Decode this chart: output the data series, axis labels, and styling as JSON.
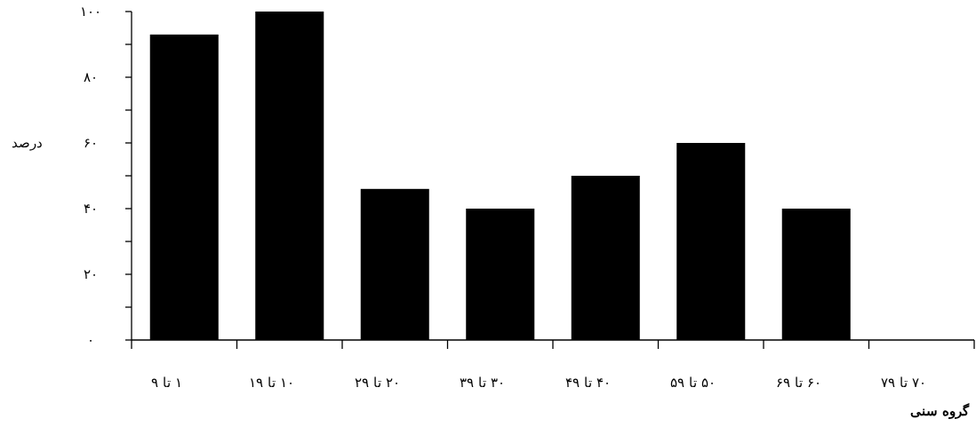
{
  "chart_data": {
    "type": "bar",
    "xlabel": "گروه سنی",
    "ylabel": "درصد",
    "categories": [
      "۱ تا ۹",
      "۱۰ تا ۱۹",
      "۲۰ تا ۲۹",
      "۳۰ تا ۳۹",
      "۴۰ تا ۴۹",
      "۵۰ تا ۵۹",
      "۶۰ تا ۶۹",
      "۷۰ تا ۷۹"
    ],
    "values": [
      93,
      100,
      46,
      40,
      50,
      60,
      40,
      0
    ],
    "color": "#000000",
    "ylim": [
      0,
      100
    ],
    "yticks": [
      {
        "value": 0,
        "label": "۰"
      },
      {
        "value": 10,
        "label": null
      },
      {
        "value": 20,
        "label": "۲۰"
      },
      {
        "value": 30,
        "label": null
      },
      {
        "value": 40,
        "label": "۴۰"
      },
      {
        "value": 50,
        "label": null
      },
      {
        "value": 60,
        "label": "۶۰"
      },
      {
        "value": 70,
        "label": null
      },
      {
        "value": 80,
        "label": "۸۰"
      },
      {
        "value": 90,
        "label": null
      },
      {
        "value": 100,
        "label": "۱۰۰"
      }
    ],
    "grid": false
  }
}
